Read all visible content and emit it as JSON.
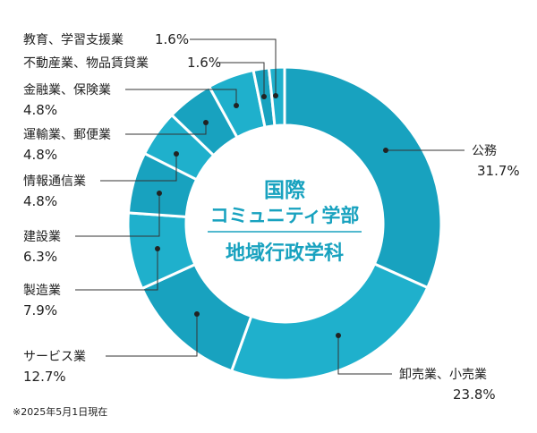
{
  "chart_data": {
    "type": "pie",
    "donut": true,
    "center_title": [
      "国際",
      "コミュニティ学部",
      "地域行政学科"
    ],
    "categories": [
      "公務",
      "卸売業、小売業",
      "サービス業",
      "製造業",
      "建設業",
      "情報通信業",
      "運輸業、郵便業",
      "金融業、保険業",
      "不動産業、物品賃貸業",
      "教育、学習支援業"
    ],
    "values": [
      31.7,
      23.8,
      12.7,
      7.9,
      6.3,
      4.8,
      4.8,
      4.8,
      1.6,
      1.6
    ],
    "value_labels": [
      "31.7%",
      "23.8%",
      "12.7%",
      "7.9%",
      "6.3%",
      "4.8%",
      "4.8%",
      "4.8%",
      "1.6%",
      "1.6%"
    ],
    "colors": [
      "#18a2bf",
      "#1fb0cc",
      "#18a2bf",
      "#1fb0cc",
      "#18a2bf",
      "#1fb0cc",
      "#18a2bf",
      "#1fb0cc",
      "#18a2bf",
      "#1fb0cc"
    ],
    "title": "",
    "legend": "none"
  },
  "footnote": "※2025年5月1日現在"
}
